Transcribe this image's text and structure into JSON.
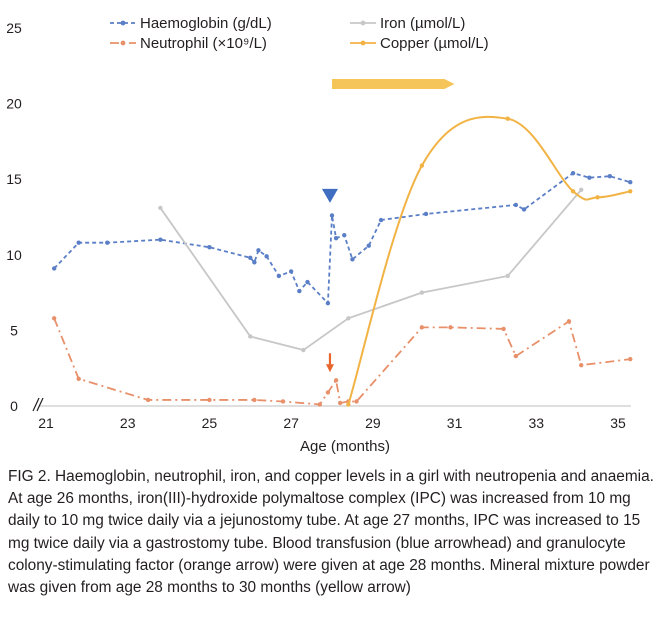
{
  "chart_data": {
    "type": "line",
    "xlabel": "Age (months)",
    "ylabel": "",
    "xlim": [
      21,
      35.5
    ],
    "ylim": [
      0,
      25
    ],
    "x_ticks": [
      21,
      23,
      25,
      27,
      29,
      31,
      33,
      35
    ],
    "y_ticks": [
      0,
      5,
      10,
      15,
      20,
      25
    ],
    "grid": false,
    "legend_position": "top",
    "series": [
      {
        "name": "Haemoglobin (g/dL)",
        "color": "#5b7fc7",
        "style": "dashed",
        "points": [
          [
            21.2,
            9.1
          ],
          [
            21.8,
            10.8
          ],
          [
            22.5,
            10.8
          ],
          [
            23.8,
            11.0
          ],
          [
            25.0,
            10.5
          ],
          [
            26.0,
            9.8
          ],
          [
            26.1,
            9.5
          ],
          [
            26.2,
            10.3
          ],
          [
            26.4,
            9.9
          ],
          [
            26.7,
            8.6
          ],
          [
            27.0,
            8.9
          ],
          [
            27.2,
            7.6
          ],
          [
            27.4,
            8.2
          ],
          [
            27.9,
            6.8
          ],
          [
            28.0,
            12.6
          ],
          [
            28.1,
            11.1
          ],
          [
            28.3,
            11.3
          ],
          [
            28.5,
            9.7
          ],
          [
            28.9,
            10.6
          ],
          [
            29.2,
            12.3
          ],
          [
            30.3,
            12.7
          ],
          [
            32.5,
            13.3
          ],
          [
            32.7,
            13.0
          ],
          [
            33.9,
            15.4
          ],
          [
            34.3,
            15.1
          ],
          [
            34.8,
            15.2
          ],
          [
            35.3,
            14.8
          ]
        ]
      },
      {
        "name": "Neutrophil (×10⁹/L)",
        "color": "#e8906a",
        "style": "dash-dot",
        "points": [
          [
            21.2,
            5.8
          ],
          [
            21.8,
            1.8
          ],
          [
            23.5,
            0.4
          ],
          [
            25.0,
            0.4
          ],
          [
            26.1,
            0.4
          ],
          [
            26.8,
            0.3
          ],
          [
            27.7,
            0.1
          ],
          [
            27.9,
            0.9
          ],
          [
            28.1,
            1.7
          ],
          [
            28.2,
            0.2
          ],
          [
            28.4,
            0.3
          ],
          [
            28.6,
            0.3
          ],
          [
            30.2,
            5.2
          ],
          [
            30.9,
            5.2
          ],
          [
            32.2,
            5.1
          ],
          [
            32.5,
            3.3
          ],
          [
            33.8,
            5.6
          ],
          [
            34.1,
            2.7
          ],
          [
            35.3,
            3.1
          ]
        ]
      },
      {
        "name": "Iron (µmol/L)",
        "color": "#c7c7c7",
        "style": "solid",
        "points": [
          [
            23.8,
            13.1
          ],
          [
            26.0,
            4.6
          ],
          [
            27.3,
            3.7
          ],
          [
            28.4,
            5.8
          ],
          [
            30.2,
            7.5
          ],
          [
            32.3,
            8.6
          ],
          [
            34.1,
            14.3
          ]
        ]
      },
      {
        "name": "Copper (µmol/L)",
        "color": "#f2b345",
        "style": "solid-smooth",
        "points": [
          [
            28.4,
            0.1
          ],
          [
            30.2,
            15.9
          ],
          [
            32.3,
            19.0
          ],
          [
            33.9,
            14.2
          ],
          [
            34.5,
            13.8
          ],
          [
            35.3,
            14.2
          ]
        ]
      }
    ],
    "annotations": [
      {
        "type": "arrowhead",
        "label": "Blood transfusion",
        "color": "#3f6dbf",
        "x": 27.95,
        "y": 13.9
      },
      {
        "type": "arrow",
        "label": "Granulocyte colony-stimulating factor",
        "color": "#e8652d",
        "x": 27.95,
        "y": 2.3
      },
      {
        "type": "bar-arrow",
        "label": "Mineral mixture powder",
        "color": "#f5c55a",
        "x_from": 28.0,
        "x_to": 30.9,
        "y": 21.3
      }
    ]
  },
  "caption": "FIG 2. Haemoglobin, neutrophil, iron, and copper levels in a girl with neutropenia and anaemia. At age 26 months, iron(III)-hydroxide polymaltose complex (IPC) was increased from 10 mg daily to 10 mg twice daily via a jejunostomy tube. At age 27 months, IPC was increased to 15 mg twice daily via a gastrostomy tube. Blood transfusion (blue arrowhead) and granulocyte colony-stimulating factor (orange arrow) were given at age 28 months. Mineral mixture powder was given from age 28 months to 30 months (yellow arrow)"
}
